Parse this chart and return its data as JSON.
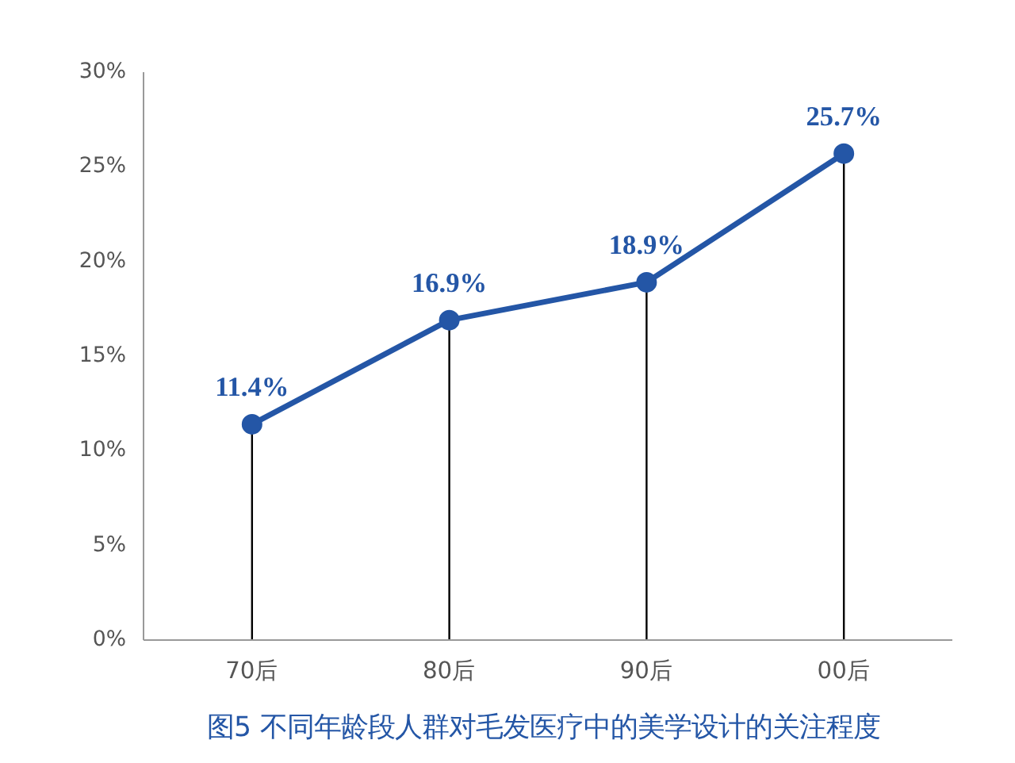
{
  "chart_data": {
    "type": "lollipop",
    "title": "图5  不同年龄段人群对毛发医疗中的美学设计的关注程度",
    "categories": [
      "70后",
      "80后",
      "90后",
      "00后"
    ],
    "series": [
      {
        "color": "#2456a6",
        "values": [
          11.4,
          16.9,
          18.9,
          25.7
        ],
        "value_labels": [
          "11.4%",
          "16.9%",
          "18.9%",
          "25.7%"
        ]
      }
    ],
    "marker": "circle",
    "line_style": "solid",
    "ylim": [
      0,
      30
    ],
    "yticks": [
      {
        "value": 0,
        "label": "0%"
      },
      {
        "value": 5,
        "label": "5%"
      },
      {
        "value": 10,
        "label": "10%"
      },
      {
        "value": 15,
        "label": "15%"
      },
      {
        "value": 20,
        "label": "20%"
      },
      {
        "value": 25,
        "label": "25%"
      },
      {
        "value": 30,
        "label": "30%"
      }
    ]
  }
}
